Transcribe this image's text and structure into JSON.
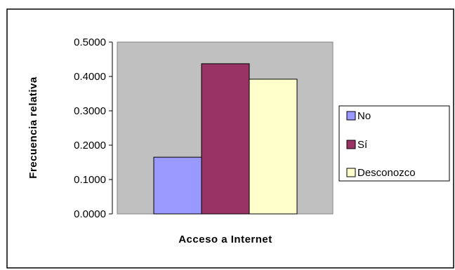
{
  "chart_data": {
    "type": "bar",
    "title": "",
    "xlabel": "Acceso a Internet",
    "ylabel": "Frecuencia relativa",
    "ylim": [
      0,
      0.5
    ],
    "yticks": [
      0,
      0.1,
      0.2,
      0.3,
      0.4,
      0.5
    ],
    "ytick_labels": [
      "0.0000",
      "0.1000",
      "0.2000",
      "0.3000",
      "0.4000",
      "0.5000"
    ],
    "categories": [
      "No",
      "Sí",
      "Desconozco"
    ],
    "series": [
      {
        "name": "No",
        "value": 0.165,
        "color": "#9999FF"
      },
      {
        "name": "Sí",
        "value": 0.437,
        "color": "#993366"
      },
      {
        "name": "Desconozco",
        "value": 0.392,
        "color": "#FFFFCC"
      }
    ],
    "plot_background": "#C0C0C0",
    "grid": false,
    "legend_position": "right"
  }
}
